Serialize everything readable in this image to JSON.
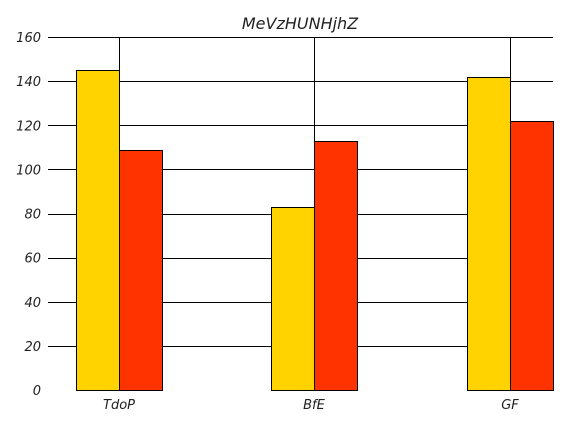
{
  "chart_data": {
    "type": "bar",
    "title": "MeVzHUNHjhZ",
    "categories": [
      "TdoP",
      "BfE",
      "GF"
    ],
    "series": [
      {
        "values": [
          145,
          83,
          142
        ],
        "color": "#FFD300"
      },
      {
        "values": [
          109,
          113,
          122
        ],
        "color": "#FF3300"
      }
    ],
    "ylim": [
      0,
      160
    ],
    "yticks": [
      "0",
      "20",
      "40",
      "60",
      "80",
      "100",
      "120",
      "140",
      "160"
    ],
    "grid": true
  }
}
